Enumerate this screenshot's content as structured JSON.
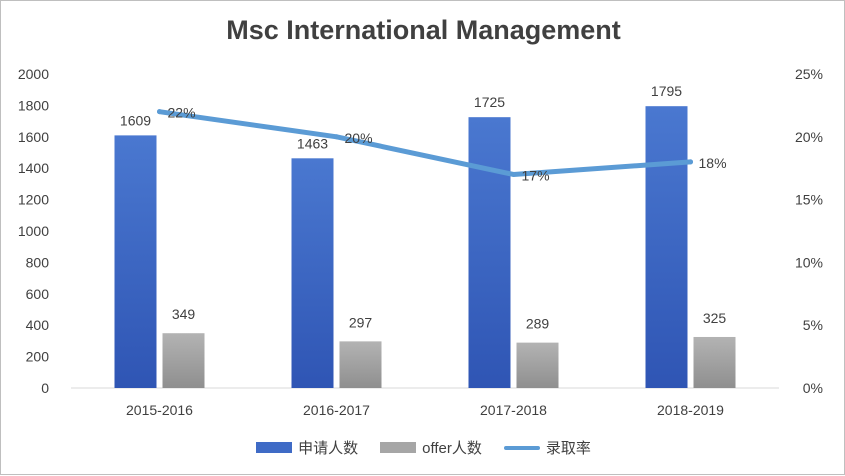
{
  "chart_data": {
    "type": "bar",
    "title": "Msc International Management",
    "categories": [
      "2015-2016",
      "2016-2017",
      "2017-2018",
      "2018-2019"
    ],
    "series": [
      {
        "name": "申请人数",
        "kind": "bar",
        "axis": "left",
        "values": [
          1609,
          1463,
          1725,
          1795
        ],
        "color": "#3f6bc6"
      },
      {
        "name": "offer人数",
        "kind": "bar",
        "axis": "left",
        "values": [
          349,
          297,
          289,
          325
        ],
        "color": "#a6a6a6"
      },
      {
        "name": "录取率",
        "kind": "line",
        "axis": "right",
        "values": [
          0.22,
          0.2,
          0.17,
          0.18
        ],
        "labels": [
          "22%",
          "20%",
          "17%",
          "18%"
        ],
        "color": "#5b9bd5"
      }
    ],
    "ylim_left": [
      0,
      2000
    ],
    "yticks_left": [
      "0",
      "200",
      "400",
      "600",
      "800",
      "1000",
      "1200",
      "1400",
      "1600",
      "1800",
      "2000"
    ],
    "ylim_right": [
      0,
      0.25
    ],
    "yticks_right": [
      "0%",
      "5%",
      "10%",
      "15%",
      "20%",
      "25%"
    ],
    "grid": false,
    "legend": "bottom"
  }
}
